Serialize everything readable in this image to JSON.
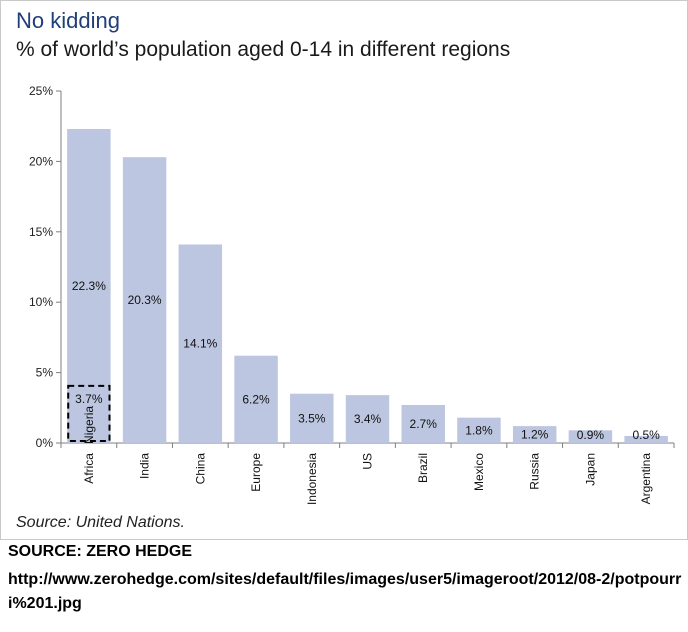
{
  "page": {
    "title": "No kidding",
    "subtitle": "% of world’s population aged 0-14  in different regions",
    "source_note": "Source: United Nations.",
    "credit": "SOURCE: ZERO HEDGE",
    "url": "http://www.zerohedge.com/sites/default/files/images/user5/imageroot/2012/08-2/potpourri%201.jpg"
  },
  "colors": {
    "bar": "#bcc6e0",
    "axis": "#7f7f7f",
    "title": "#1f3f7a"
  },
  "chart_data": {
    "type": "bar",
    "title": "% of world’s population aged 0-14  in different regions",
    "xlabel": "",
    "ylabel": "",
    "ylim": [
      0,
      25
    ],
    "yticks": [
      0,
      5,
      10,
      15,
      20,
      25
    ],
    "ytick_labels": [
      "0%",
      "5%",
      "10%",
      "15%",
      "20%",
      "25%"
    ],
    "categories": [
      "Africa",
      "India",
      "China",
      "Europe",
      "Indonesia",
      "US",
      "Brazil",
      "Mexico",
      "Russia",
      "Japan",
      "Argentina"
    ],
    "values": [
      22.3,
      20.3,
      14.1,
      6.2,
      3.5,
      3.4,
      2.7,
      1.8,
      1.2,
      0.9,
      0.5
    ],
    "data_labels": [
      "22.3%",
      "20.3%",
      "14.1%",
      "6.2%",
      "3.5%",
      "3.4%",
      "2.7%",
      "1.8%",
      "1.2%",
      "0.9%",
      "0.5%"
    ],
    "annotation": {
      "label": "Nigeria",
      "value": 3.7,
      "value_label": "3.7%",
      "within": "Africa"
    },
    "grid": false,
    "legend": "none"
  }
}
